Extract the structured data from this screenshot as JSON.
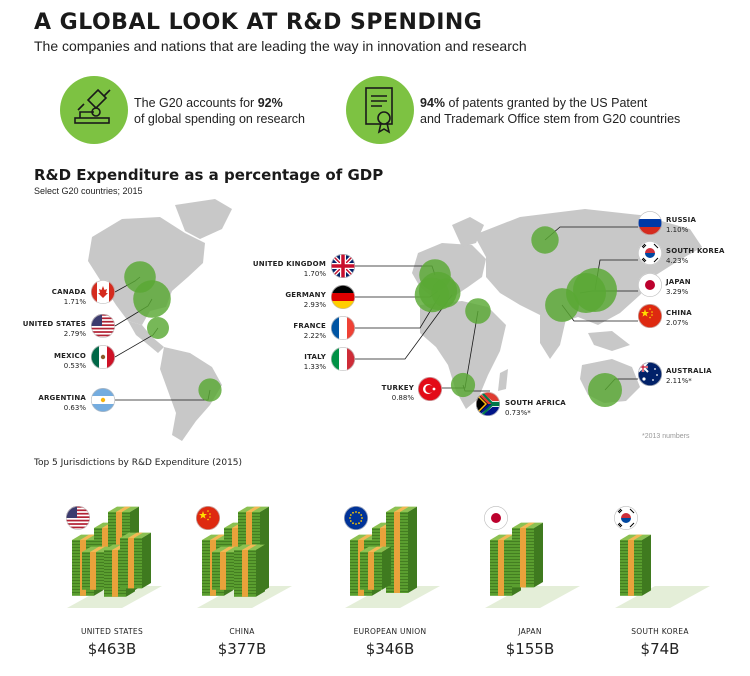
{
  "header": {
    "title": "A GLOBAL LOOK AT R&D SPENDING",
    "subtitle": "The companies and nations that are leading the way in innovation and research"
  },
  "stats": [
    {
      "pre": "The G20 accounts for ",
      "bold": "92%",
      "line2": "of global spending on research",
      "icon": "microscope-icon"
    },
    {
      "pre": "",
      "bold": "94%",
      "post": " of patents granted by the US Patent",
      "line2": "and Trademark Office stem from G20 countries",
      "icon": "patent-certificate-icon"
    }
  ],
  "map_section": {
    "title": "R&D Expenditure as a percentage of GDP",
    "subtitle": "Select G20 countries; 2015",
    "note": "*2013 numbers"
  },
  "top5_title": "Top 5 Jurisdictions by R&D Expenditure (2015)",
  "colors": {
    "accent_green": "#7dc242",
    "dark_green": "#4e9a2a",
    "map_gray": "#c8c8c8"
  },
  "chart_data": [
    {
      "type": "bubble-map",
      "title": "R&D Expenditure as a percentage of GDP",
      "subtitle": "Select G20 countries; 2015",
      "unit": "% of GDP",
      "points": [
        {
          "country": "CANADA",
          "value": 1.71,
          "label": "1.71%"
        },
        {
          "country": "UNITED STATES",
          "value": 2.79,
          "label": "2.79%"
        },
        {
          "country": "MEXICO",
          "value": 0.53,
          "label": "0.53%"
        },
        {
          "country": "ARGENTINA",
          "value": 0.63,
          "label": "0.63%"
        },
        {
          "country": "UNITED KINGDOM",
          "value": 1.7,
          "label": "1.70%"
        },
        {
          "country": "GERMANY",
          "value": 2.93,
          "label": "2.93%"
        },
        {
          "country": "FRANCE",
          "value": 2.22,
          "label": "2.22%"
        },
        {
          "country": "ITALY",
          "value": 1.33,
          "label": "1.33%"
        },
        {
          "country": "TURKEY",
          "value": 0.88,
          "label": "0.88%"
        },
        {
          "country": "SOUTH AFRICA",
          "value": 0.73,
          "label": "0.73%*"
        },
        {
          "country": "RUSSIA",
          "value": 1.1,
          "label": "1.10%"
        },
        {
          "country": "SOUTH KOREA",
          "value": 4.23,
          "label": "4.23%"
        },
        {
          "country": "JAPAN",
          "value": 3.29,
          "label": "3.29%"
        },
        {
          "country": "CHINA",
          "value": 2.07,
          "label": "2.07%"
        },
        {
          "country": "AUSTRALIA",
          "value": 2.11,
          "label": "2.11%*"
        }
      ]
    },
    {
      "type": "bar",
      "title": "Top 5 Jurisdictions by R&D Expenditure (2015)",
      "categories": [
        "UNITED STATES",
        "CHINA",
        "EUROPEAN UNION",
        "JAPAN",
        "SOUTH KOREA"
      ],
      "values": [
        463,
        377,
        346,
        155,
        74
      ],
      "labels": [
        "$463B",
        "$377B",
        "$346B",
        "$155B",
        "$74B"
      ],
      "unit": "USD billions"
    }
  ]
}
